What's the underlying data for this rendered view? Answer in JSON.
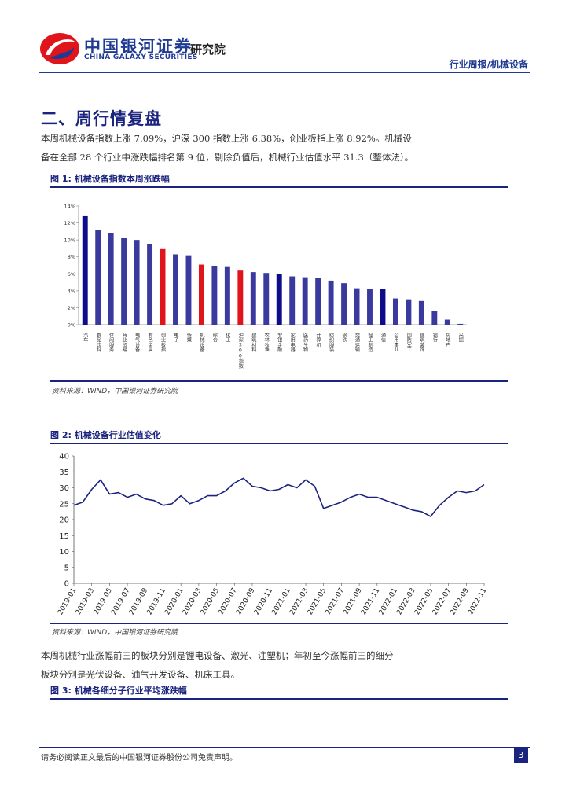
{
  "header": {
    "brand_cn": "中国银河证券",
    "brand_en": "CHINA GALAXY SECURITIES",
    "brand_inst": "研究院",
    "report_type": "行业周报/机械设备"
  },
  "section": {
    "title": "二、周行情复盘",
    "para1": [
      "本周机械设备指数上涨 7.09%，沪深 300 指数上涨 6.38%，创业板指上涨 8.92%。机械设",
      "备在全部 28 个行业中涨跌幅排名第 9 位，剔除负值后，机械行业估值水平 31.3（整体法）。"
    ],
    "para2": [
      "本周机械行业涨幅前三的板块分别是锂电设备、激光、注塑机；年初至今涨幅前三的细分",
      "板块分别是光伏设备、油气开发设备、机床工具。"
    ]
  },
  "figures": [
    {
      "label": "图 1:",
      "title": "机械设备指数本周涨跌幅",
      "source": "资料来源：WIND，中国银河证券研究院"
    },
    {
      "label": "图 2:",
      "title": "机械设备行业估值变化",
      "source": "资料来源：WIND，中国银河证券研究院"
    },
    {
      "label": "图 3:",
      "title": "机械各细分子行业平均涨跌幅",
      "source": ""
    }
  ],
  "chart_data": [
    {
      "type": "bar",
      "title": "机械设备指数本周涨跌幅",
      "categories": [
        "汽车",
        "食品饮料",
        "休闲服务",
        "商业贸易",
        "电气设备",
        "有色金属",
        "创业板指",
        "电子",
        "传媒",
        "机械设备",
        "综合",
        "化工",
        "沪深300指数",
        "建筑材料",
        "农林牧渔",
        "非银金融",
        "家用电器",
        "医药生物",
        "计算机",
        "纺织服装",
        "钢铁",
        "交通运输",
        "轻工制造",
        "通信",
        "公用事业",
        "国防军工",
        "建筑装饰",
        "银行",
        "房地产",
        "采掘"
      ],
      "values": [
        12.8,
        11.2,
        10.8,
        10.2,
        10.0,
        9.5,
        8.92,
        8.3,
        8.1,
        7.09,
        6.9,
        6.8,
        6.38,
        6.2,
        6.1,
        6.0,
        5.7,
        5.6,
        5.5,
        5.2,
        4.9,
        4.3,
        4.2,
        4.2,
        3.1,
        3.0,
        2.8,
        1.6,
        0.6,
        0.1
      ],
      "bar_colors": [
        "#0d0d8c",
        "#3a3a9e",
        "#3a3a9e",
        "#3a3a9e",
        "#3a3a9e",
        "#3a3a9e",
        "#e0151b",
        "#3a3a9e",
        "#3a3a9e",
        "#e0151b",
        "#3a3a9e",
        "#3a3a9e",
        "#e0151b",
        "#3a3a9e",
        "#3a3a9e",
        "#0d0d8c",
        "#3a3a9e",
        "#3a3a9e",
        "#3a3a9e",
        "#3a3a9e",
        "#3a3a9e",
        "#3a3a9e",
        "#3a3a9e",
        "#0d0d8c",
        "#3a3a9e",
        "#3a3a9e",
        "#3a3a9e",
        "#3a3a9e",
        "#3a3a9e",
        "#3a3a9e"
      ],
      "ylim": [
        0,
        14
      ],
      "yticks": [
        "0%",
        "2%",
        "4%",
        "6%",
        "8%",
        "10%",
        "12%",
        "14%"
      ],
      "grid": false
    },
    {
      "type": "line",
      "title": "机械设备行业估值变化",
      "x": [
        "2019-01",
        "2019-02",
        "2019-03",
        "2019-04",
        "2019-05",
        "2019-06",
        "2019-07",
        "2019-08",
        "2019-09",
        "2019-10",
        "2019-11",
        "2019-12",
        "2020-01",
        "2020-02",
        "2020-03",
        "2020-04",
        "2020-05",
        "2020-06",
        "2020-07",
        "2020-08",
        "2020-09",
        "2020-10",
        "2020-11",
        "2020-12",
        "2021-01",
        "2021-02",
        "2021-03",
        "2021-04",
        "2021-05",
        "2021-06",
        "2021-07",
        "2021-08",
        "2021-09",
        "2021-10",
        "2021-11",
        "2021-12",
        "2022-01",
        "2022-02",
        "2022-03",
        "2022-04",
        "2022-05",
        "2022-06",
        "2022-07",
        "2022-08",
        "2022-09",
        "2022-10",
        "2022-11"
      ],
      "values": [
        24.5,
        25.5,
        29.5,
        32.5,
        28.0,
        28.5,
        27.0,
        28.0,
        26.5,
        26.0,
        24.5,
        25.0,
        27.5,
        25.0,
        26.0,
        27.5,
        27.5,
        29.0,
        31.5,
        33.0,
        30.5,
        30.0,
        29.0,
        29.5,
        31.0,
        30.0,
        32.5,
        30.5,
        23.5,
        24.5,
        25.5,
        27.0,
        28.0,
        27.0,
        27.0,
        26.0,
        25.0,
        24.0,
        23.0,
        22.5,
        21.0,
        24.5,
        27.0,
        29.0,
        28.5,
        29.0,
        31.0
      ],
      "ylim": [
        0,
        40
      ],
      "yticks": [
        "0",
        "5",
        "10",
        "15",
        "20",
        "25",
        "30",
        "35",
        "40"
      ],
      "xticks": [
        "2019-01",
        "2019-03",
        "2019-05",
        "2019-07",
        "2019-09",
        "2019-11",
        "2020-01",
        "2020-03",
        "2020-05",
        "2020-07",
        "2020-09",
        "2020-11",
        "2021-01",
        "2021-03",
        "2021-05",
        "2021-07",
        "2021-09",
        "2021-11",
        "2022-01",
        "2022-03",
        "2022-05",
        "2022-07",
        "2022-09",
        "2022-11"
      ],
      "line_color": "#1a237e",
      "grid": false
    }
  ],
  "footer": {
    "disclaimer": "请务必阅读正文最后的中国银河证券股份公司免责声明。",
    "page": "3"
  }
}
